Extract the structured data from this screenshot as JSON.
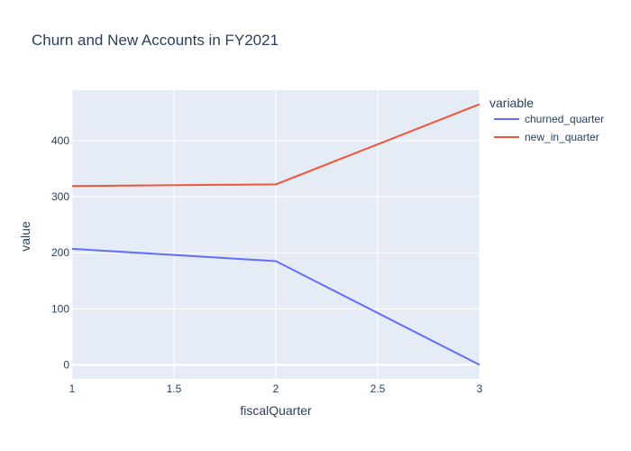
{
  "chart_data": {
    "type": "line",
    "title": "Churn and New Accounts in FY2021",
    "xlabel": "fiscalQuarter",
    "ylabel": "value",
    "xlim": [
      1,
      3
    ],
    "ylim": [
      -25,
      490
    ],
    "xticks": [
      1,
      1.5,
      2,
      2.5,
      3
    ],
    "yticks": [
      0,
      100,
      200,
      300,
      400
    ],
    "grid": true,
    "legend": {
      "title": "variable",
      "placement": "right"
    },
    "series": [
      {
        "name": "churned_quarter",
        "color": "#636efa",
        "x": [
          1,
          2,
          3
        ],
        "y": [
          207,
          185,
          0
        ]
      },
      {
        "name": "new_in_quarter",
        "color": "#ef553b",
        "x": [
          1,
          2,
          3
        ],
        "y": [
          319,
          322,
          465
        ]
      }
    ]
  }
}
